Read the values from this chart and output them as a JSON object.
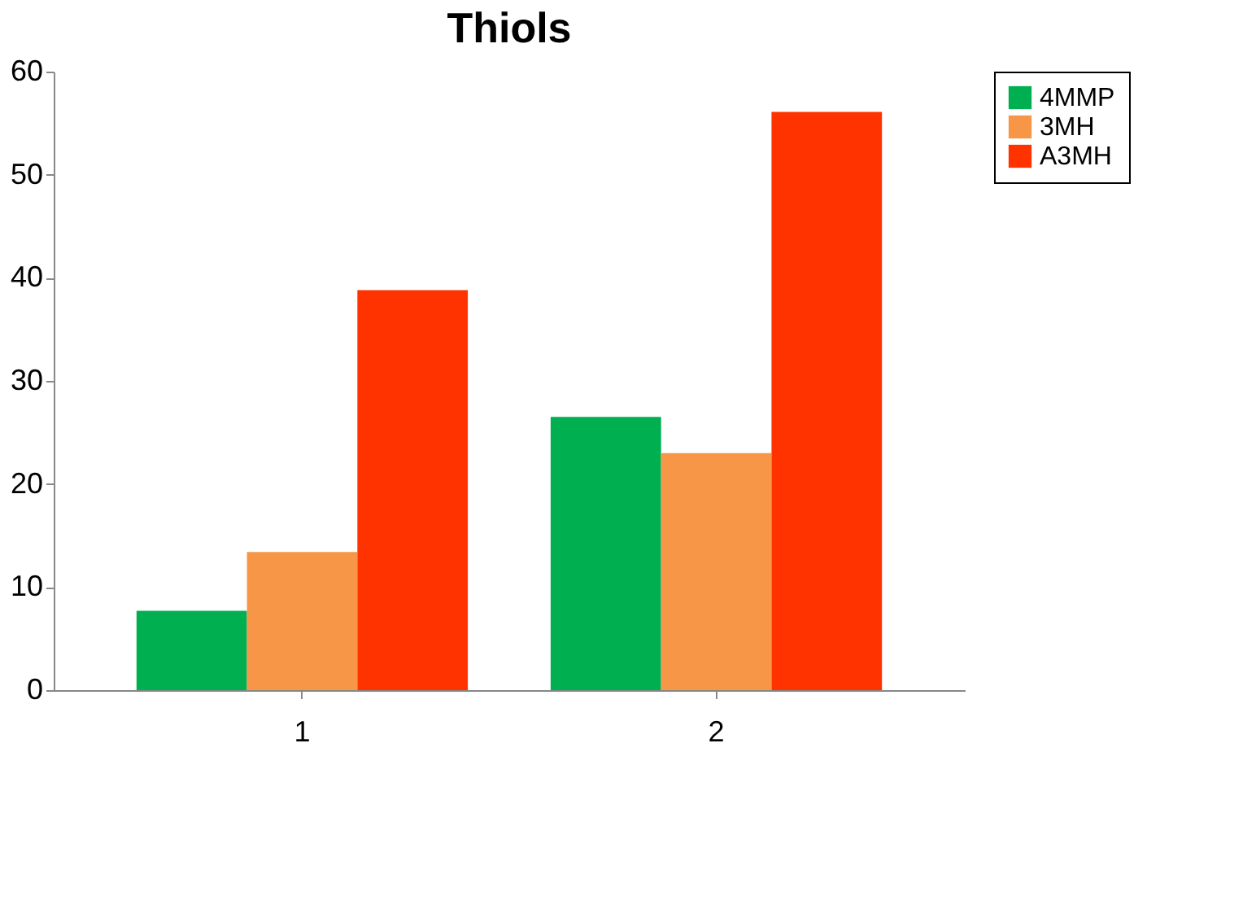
{
  "chart_data": {
    "type": "bar",
    "title": "Thiols",
    "categories": [
      "1",
      "2"
    ],
    "series": [
      {
        "name": "4MMP",
        "color": "#00b050",
        "values": [
          7.7,
          26.5
        ]
      },
      {
        "name": "3MH",
        "color": "#f79646",
        "values": [
          13.4,
          23
        ]
      },
      {
        "name": "A3MH",
        "color": "#ff3300",
        "values": [
          38.8,
          56.1
        ]
      }
    ],
    "ylim": [
      0,
      60
    ],
    "yticks": [
      0,
      10,
      20,
      30,
      40,
      50,
      60
    ],
    "grid": false,
    "legend": "right"
  }
}
